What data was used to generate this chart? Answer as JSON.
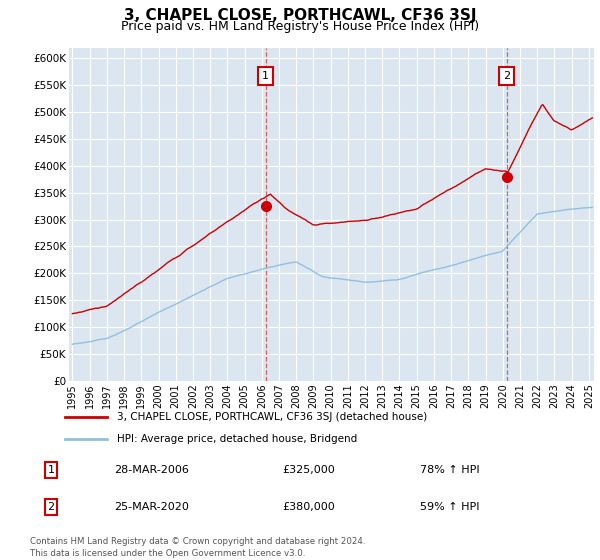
{
  "title": "3, CHAPEL CLOSE, PORTHCAWL, CF36 3SJ",
  "subtitle": "Price paid vs. HM Land Registry's House Price Index (HPI)",
  "title_fontsize": 11,
  "subtitle_fontsize": 9,
  "xlim_start": 1995.0,
  "xlim_end": 2025.3,
  "ylim_bottom": 0,
  "ylim_top": 620000,
  "yticks": [
    0,
    50000,
    100000,
    150000,
    200000,
    250000,
    300000,
    350000,
    400000,
    450000,
    500000,
    550000,
    600000
  ],
  "ytick_labels": [
    "£0",
    "£50K",
    "£100K",
    "£150K",
    "£200K",
    "£250K",
    "£300K",
    "£350K",
    "£400K",
    "£450K",
    "£500K",
    "£550K",
    "£600K"
  ],
  "xticks": [
    1995,
    1996,
    1997,
    1998,
    1999,
    2000,
    2001,
    2002,
    2003,
    2004,
    2005,
    2006,
    2007,
    2008,
    2009,
    2010,
    2011,
    2012,
    2013,
    2014,
    2015,
    2016,
    2017,
    2018,
    2019,
    2020,
    2021,
    2022,
    2023,
    2024,
    2025
  ],
  "plot_bg_color": "#dce6f1",
  "fig_bg_color": "#ffffff",
  "grid_color": "#ffffff",
  "hpi_color": "#92c0e0",
  "price_color": "#cc0000",
  "sale1_x": 2006.23,
  "sale1_y": 325000,
  "sale2_x": 2020.23,
  "sale2_y": 380000,
  "legend_label_price": "3, CHAPEL CLOSE, PORTHCAWL, CF36 3SJ (detached house)",
  "legend_label_hpi": "HPI: Average price, detached house, Bridgend",
  "footer1": "Contains HM Land Registry data © Crown copyright and database right 2024.",
  "footer2": "This data is licensed under the Open Government Licence v3.0.",
  "table_row1": [
    "1",
    "28-MAR-2006",
    "£325,000",
    "78% ↑ HPI"
  ],
  "table_row2": [
    "2",
    "25-MAR-2020",
    "£380,000",
    "59% ↑ HPI"
  ]
}
